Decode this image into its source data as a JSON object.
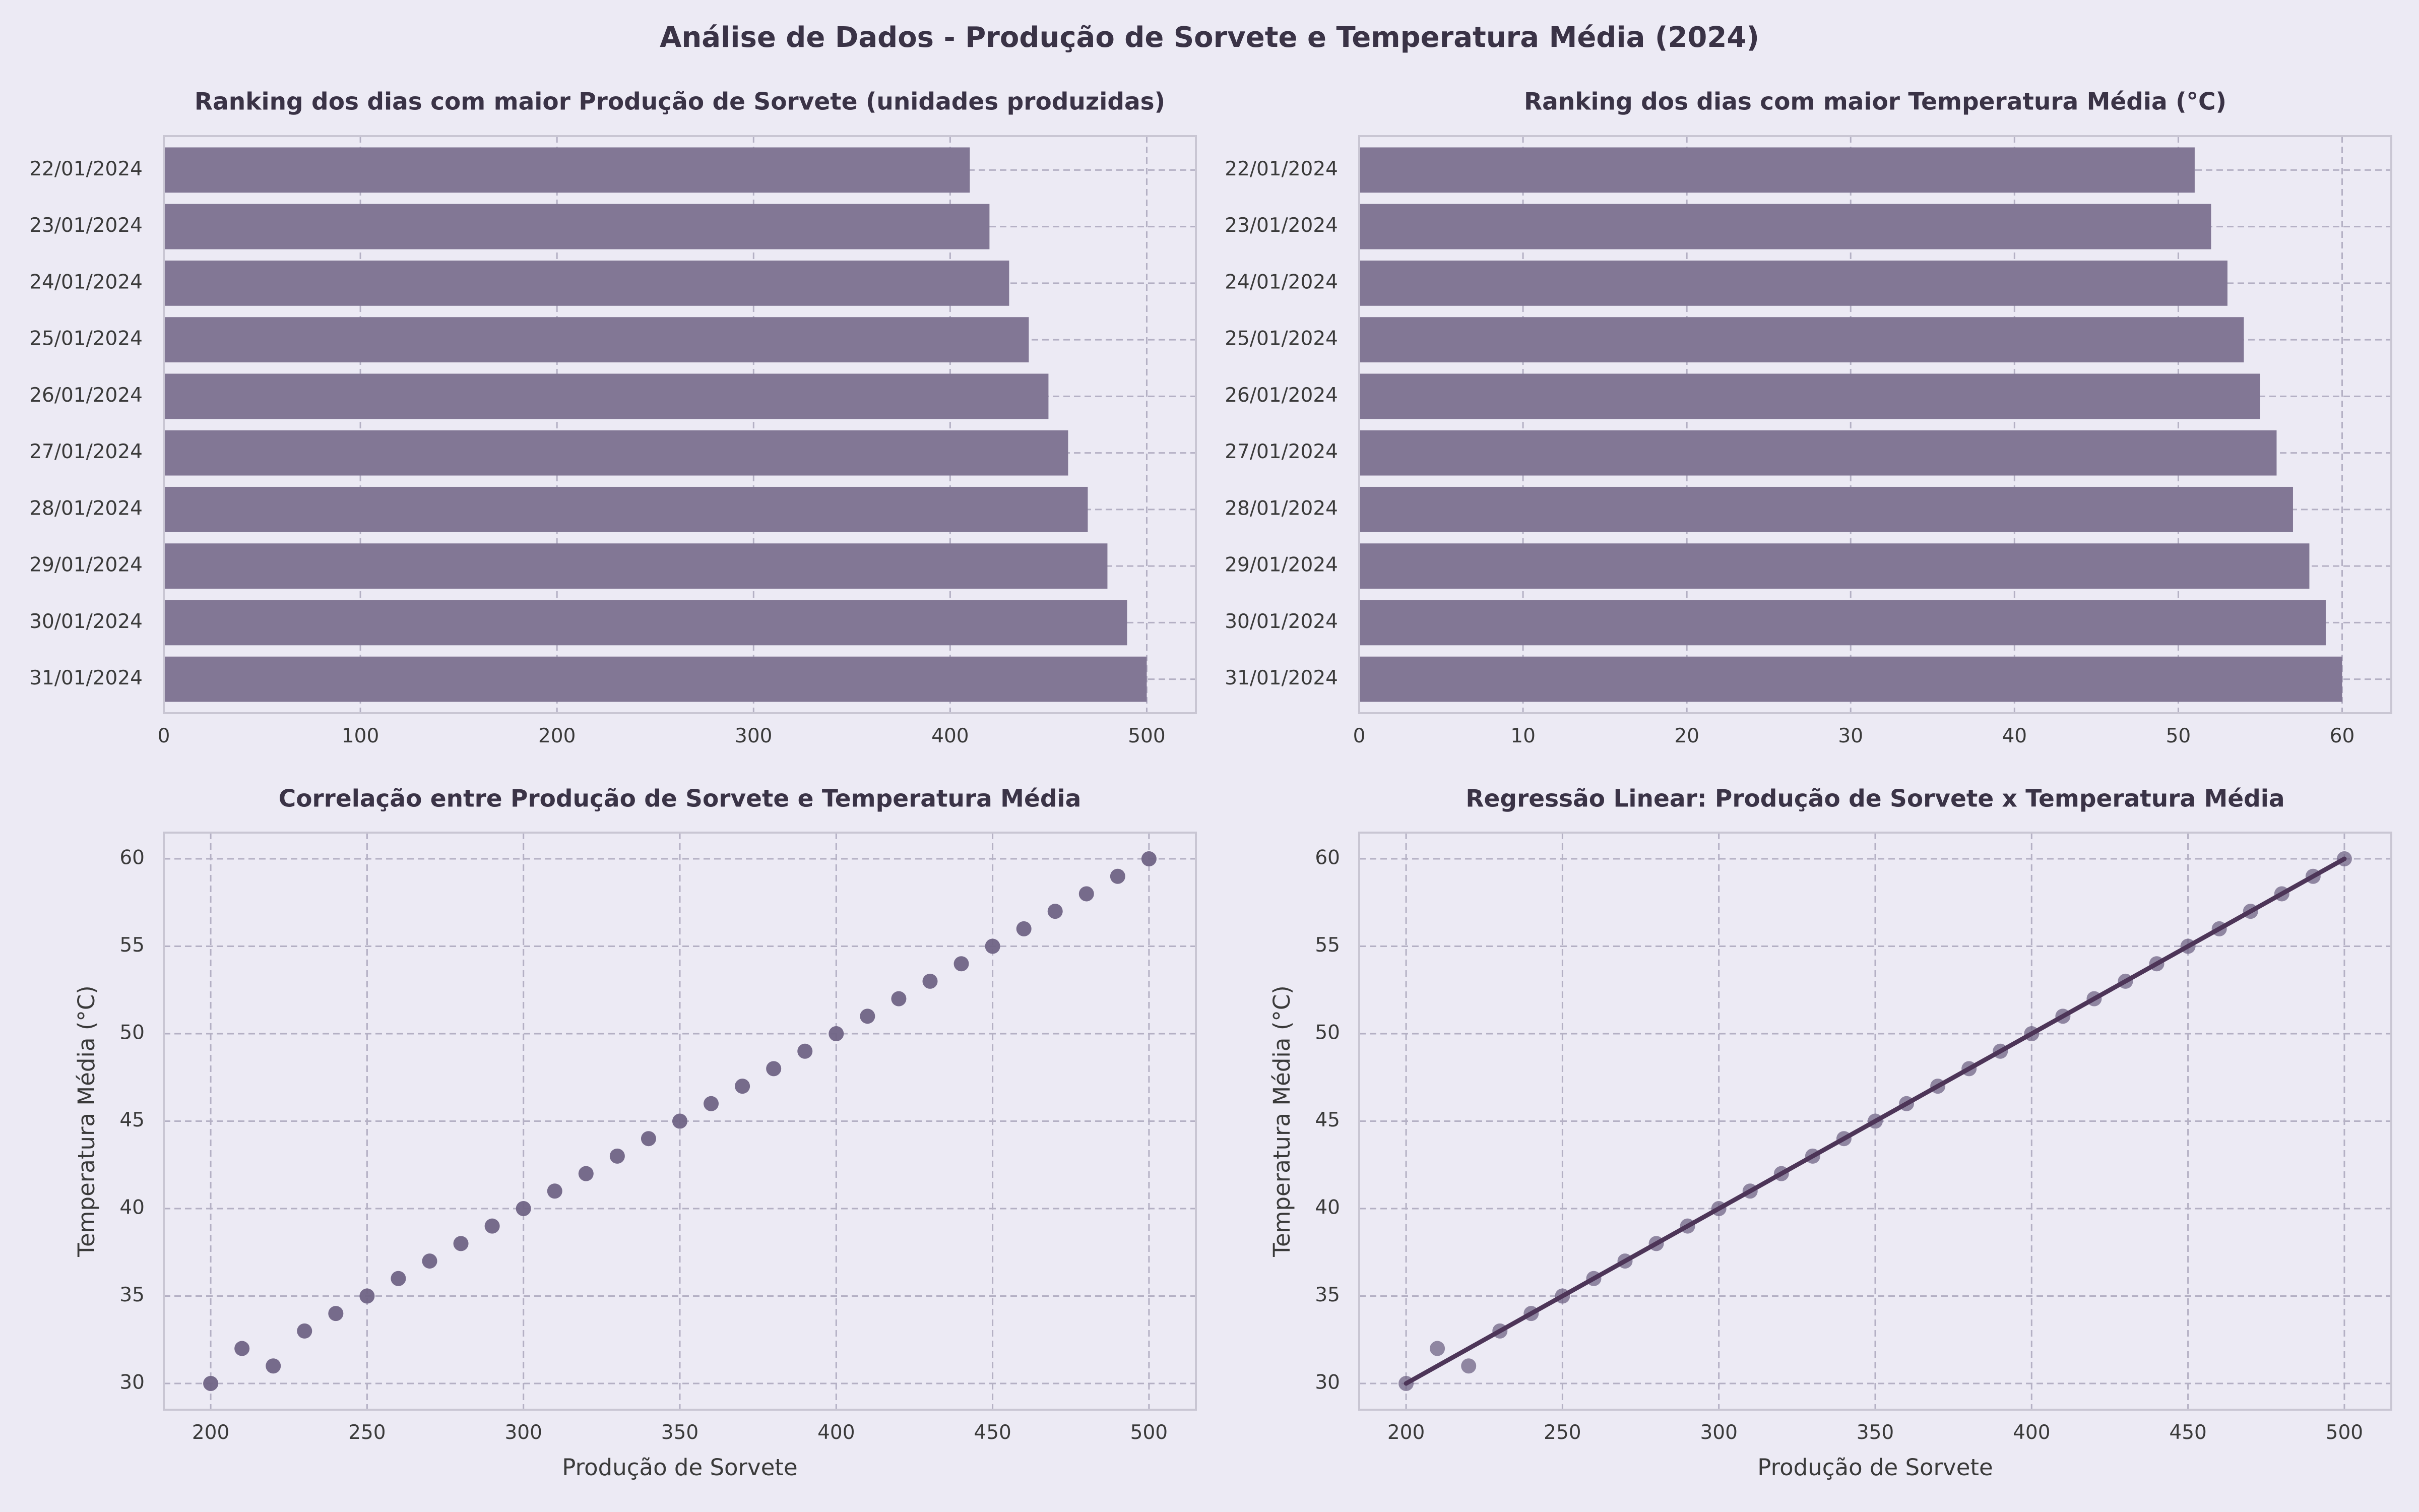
{
  "page": {
    "suptitle": "Análise de Dados - Produção de Sorvete e Temperatura Média (2024)"
  },
  "colors": {
    "background": "#eceaf4",
    "bar": "#827795",
    "point": "#706485",
    "regression_line": "#4d3558"
  },
  "chart_data": [
    {
      "type": "bar",
      "orientation": "horizontal",
      "title": "Ranking dos dias com maior Produção de Sorvete (unidades produzidas)",
      "xlabel": "",
      "ylabel": "",
      "categories": [
        "22/01/2024",
        "23/01/2024",
        "24/01/2024",
        "25/01/2024",
        "26/01/2024",
        "27/01/2024",
        "28/01/2024",
        "29/01/2024",
        "30/01/2024",
        "31/01/2024"
      ],
      "values": [
        410,
        420,
        430,
        440,
        450,
        460,
        470,
        480,
        490,
        500
      ],
      "xlim": [
        0,
        525
      ],
      "xticks": [
        0,
        100,
        200,
        300,
        400,
        500
      ],
      "grid": true
    },
    {
      "type": "bar",
      "orientation": "horizontal",
      "title": "Ranking dos dias com maior Temperatura Média (°C)",
      "xlabel": "",
      "ylabel": "",
      "categories": [
        "22/01/2024",
        "23/01/2024",
        "24/01/2024",
        "25/01/2024",
        "26/01/2024",
        "27/01/2024",
        "28/01/2024",
        "29/01/2024",
        "30/01/2024",
        "31/01/2024"
      ],
      "values": [
        51,
        52,
        53,
        54,
        55,
        56,
        57,
        58,
        59,
        60
      ],
      "xlim": [
        0,
        63
      ],
      "xticks": [
        0,
        10,
        20,
        30,
        40,
        50,
        60
      ],
      "grid": true
    },
    {
      "type": "scatter",
      "title": "Correlação entre Produção de Sorvete e Temperatura Média",
      "xlabel": "Produção de Sorvete",
      "ylabel": "Temperatura Média (°C)",
      "x": [
        200,
        210,
        220,
        230,
        240,
        250,
        260,
        270,
        280,
        290,
        300,
        310,
        320,
        330,
        340,
        350,
        360,
        370,
        380,
        390,
        400,
        410,
        420,
        430,
        440,
        450,
        460,
        470,
        480,
        490,
        500
      ],
      "y": [
        30,
        32,
        31,
        33,
        34,
        35,
        36,
        37,
        38,
        39,
        40,
        41,
        42,
        43,
        44,
        45,
        46,
        47,
        48,
        49,
        50,
        51,
        52,
        53,
        54,
        55,
        56,
        57,
        58,
        59,
        60
      ],
      "xlim": [
        185,
        515
      ],
      "ylim": [
        28.5,
        61.5
      ],
      "xticks": [
        200,
        250,
        300,
        350,
        400,
        450,
        500
      ],
      "yticks": [
        30,
        35,
        40,
        45,
        50,
        55,
        60
      ],
      "grid": true
    },
    {
      "type": "scatter",
      "title": "Regressão Linear: Produção de Sorvete x Temperatura Média",
      "xlabel": "Produção de Sorvete",
      "ylabel": "Temperatura Média (°C)",
      "x": [
        200,
        210,
        220,
        230,
        240,
        250,
        260,
        270,
        280,
        290,
        300,
        310,
        320,
        330,
        340,
        350,
        360,
        370,
        380,
        390,
        400,
        410,
        420,
        430,
        440,
        450,
        460,
        470,
        480,
        490,
        500
      ],
      "y": [
        30,
        32,
        31,
        33,
        34,
        35,
        36,
        37,
        38,
        39,
        40,
        41,
        42,
        43,
        44,
        45,
        46,
        47,
        48,
        49,
        50,
        51,
        52,
        53,
        54,
        55,
        56,
        57,
        58,
        59,
        60
      ],
      "regression": {
        "x": [
          200,
          500
        ],
        "y": [
          30,
          60
        ]
      },
      "xlim": [
        185,
        515
      ],
      "ylim": [
        28.5,
        61.5
      ],
      "xticks": [
        200,
        250,
        300,
        350,
        400,
        450,
        500
      ],
      "yticks": [
        30,
        35,
        40,
        45,
        50,
        55,
        60
      ],
      "grid": true
    }
  ]
}
